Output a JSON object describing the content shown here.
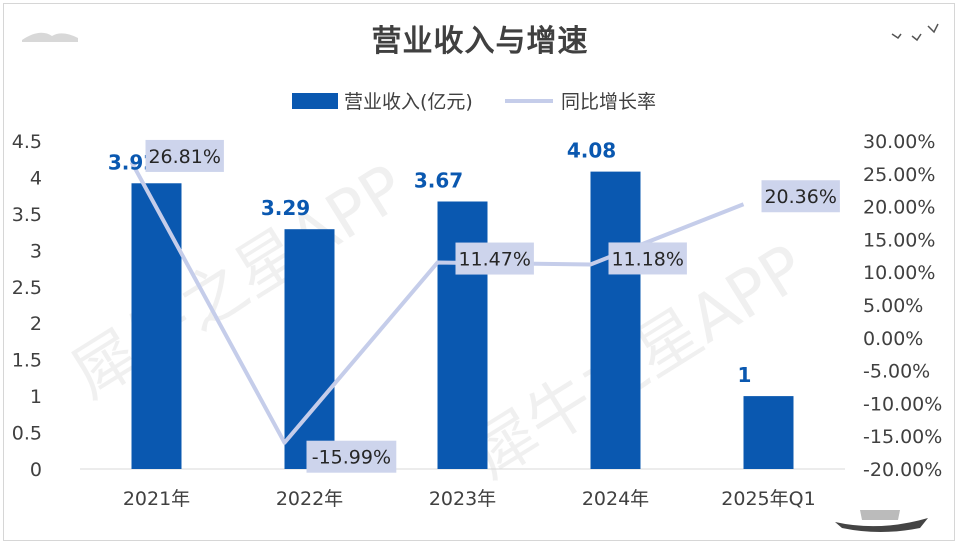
{
  "chart_data": {
    "type": "bar",
    "title": "营业收入与增速",
    "categories": [
      "2021年",
      "2022年",
      "2023年",
      "2024年",
      "2025年Q1"
    ],
    "series": [
      {
        "name": "营业收入(亿元)",
        "type": "bar",
        "axis": "left",
        "values": [
          3.92,
          3.29,
          3.67,
          4.08,
          1
        ],
        "labels": [
          "3.92",
          "3.29",
          "3.67",
          "4.08",
          "1"
        ]
      },
      {
        "name": "同比增长率",
        "type": "line",
        "axis": "right",
        "values": [
          26.81,
          -15.99,
          11.47,
          11.18,
          20.36
        ],
        "labels": [
          "26.81%",
          "-15.99%",
          "11.47%",
          "11.18%",
          "20.36%"
        ]
      }
    ],
    "y_left": {
      "min": 0,
      "max": 4.5,
      "ticks": [
        "0",
        "0.5",
        "1",
        "1.5",
        "2",
        "2.5",
        "3",
        "3.5",
        "4",
        "4.5"
      ]
    },
    "y_right": {
      "min": -20,
      "max": 30,
      "ticks": [
        "-20.00%",
        "-15.00%",
        "-10.00%",
        "-5.00%",
        "0.00%",
        "5.00%",
        "10.00%",
        "15.00%",
        "20.00%",
        "25.00%",
        "30.00%"
      ]
    },
    "legend_position": "top-center",
    "grid": false,
    "colors": {
      "bar": "#0a58b0",
      "line": "#c5cdea",
      "line_label_bg": "#cdd4ec",
      "bar_label": "#0a58b0",
      "axis_text": "#404040",
      "title": "#404040"
    }
  },
  "watermark": "犀牛之星APP"
}
